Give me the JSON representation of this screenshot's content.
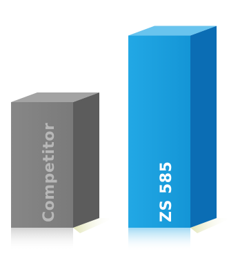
{
  "chart_data": {
    "type": "bar",
    "style": "3d-column",
    "categories": [
      "Competitor",
      "ZS 585"
    ],
    "values": [
      1.0,
      1.53
    ],
    "value_scale": "relative (no axis printed)",
    "ylim": [
      0,
      1.6
    ],
    "grid": false,
    "legend": "none",
    "title": "",
    "xlabel": "",
    "ylabel": "",
    "series_colors": {
      "Competitor": {
        "front": "#808080",
        "side": "#5c5c5c",
        "top": "#a3a3a3",
        "label": "#b7b7b7"
      },
      "ZS 585": {
        "front": "#1aa0df",
        "side": "#0b6db4",
        "top": "#69c4ee",
        "label": "#ffffff"
      }
    }
  }
}
